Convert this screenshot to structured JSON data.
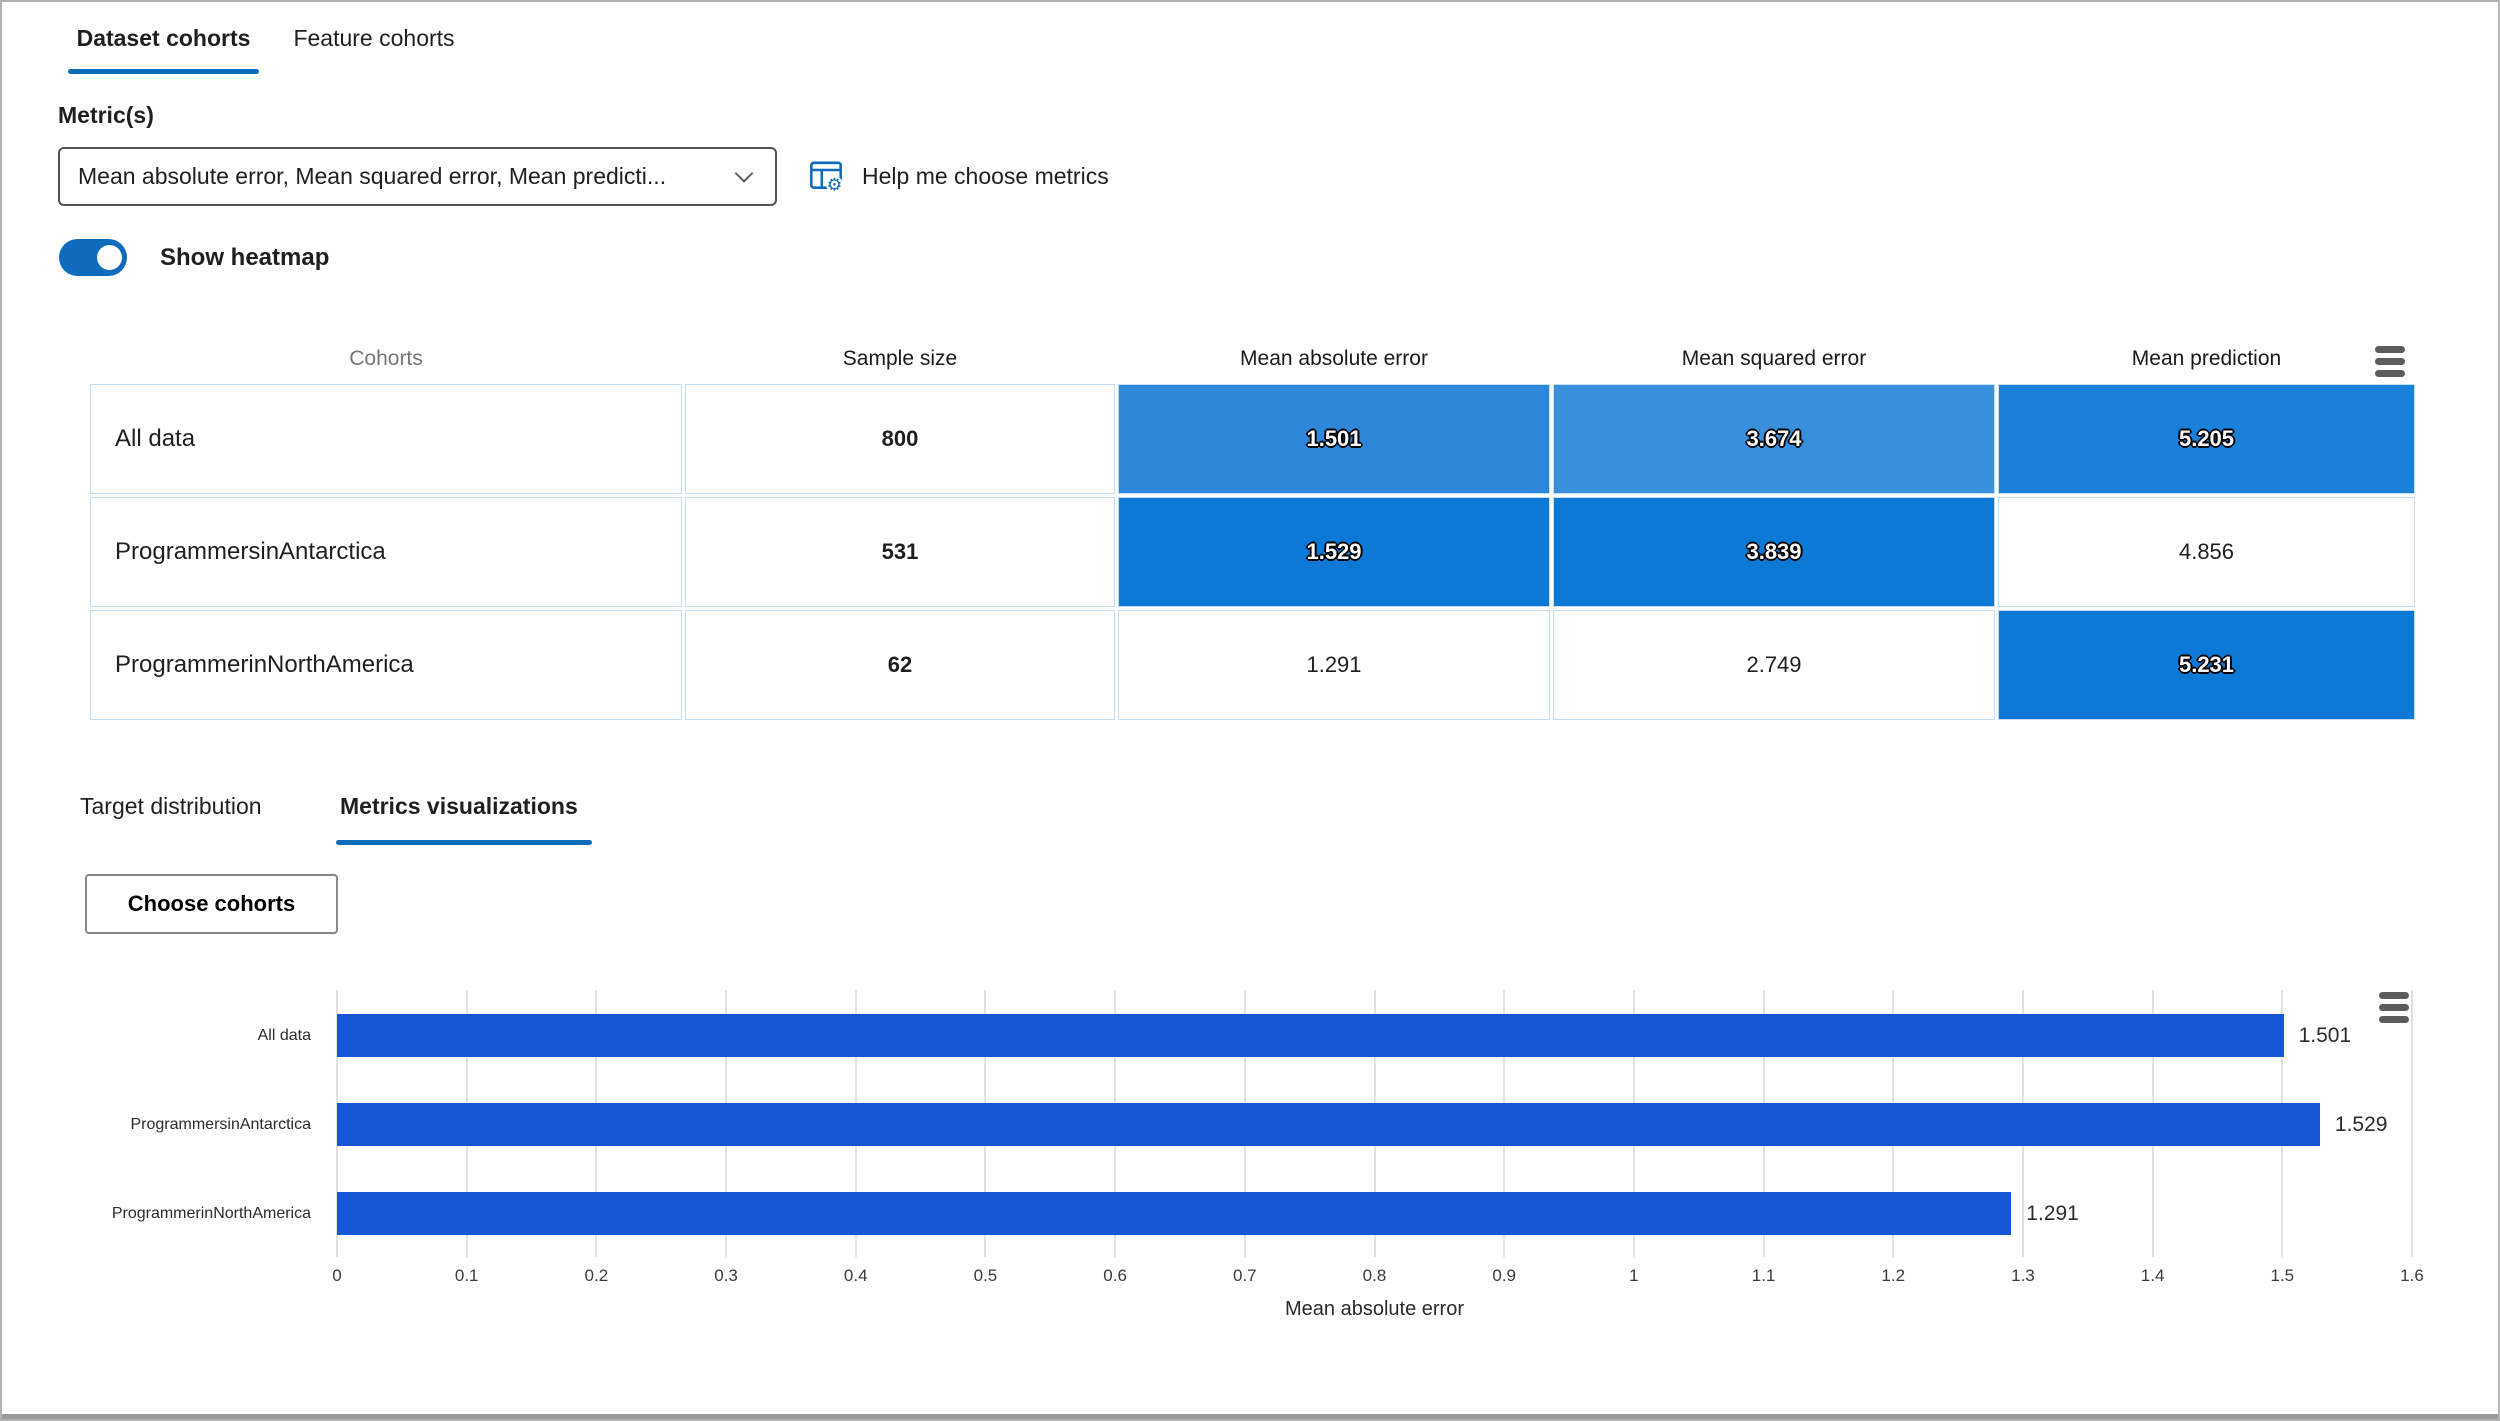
{
  "theme": {
    "accent": "#0f6cbd",
    "heatmap_full_blue": "#0d79d6",
    "bar_blue": "#1556d2"
  },
  "tabs": [
    {
      "label": "Dataset cohorts",
      "active": true
    },
    {
      "label": "Feature cohorts",
      "active": false
    }
  ],
  "metric_selector": {
    "label": "Metric(s)",
    "value": "Mean absolute error, Mean squared error, Mean predicti...",
    "help_label": "Help me choose metrics"
  },
  "heatmap_toggle": {
    "label": "Show heatmap",
    "state": "on"
  },
  "cohort_table": {
    "headers": [
      "Cohorts",
      "Sample size",
      "Mean absolute error",
      "Mean squared error",
      "Mean prediction"
    ],
    "rows": [
      {
        "cohort": "All data",
        "sample_size": "800",
        "values": [
          "1.501",
          "3.674",
          "5.205"
        ],
        "cell_colors": [
          "#2e87d9",
          "#3a90dd",
          "#1981d8"
        ]
      },
      {
        "cohort": "ProgrammersinAntarctica",
        "sample_size": "531",
        "values": [
          "1.529",
          "3.839",
          "4.856"
        ],
        "cell_colors": [
          "#0d79d6",
          "#0d79d6",
          "#ffffff"
        ]
      },
      {
        "cohort": "ProgrammerinNorthAmerica",
        "sample_size": "62",
        "values": [
          "1.291",
          "2.749",
          "5.231"
        ],
        "cell_colors": [
          "#ffffff",
          "#ffffff",
          "#0d79d6"
        ]
      }
    ]
  },
  "sub_tabs": [
    {
      "label": "Target distribution",
      "active": false
    },
    {
      "label": "Metrics visualizations",
      "active": true
    }
  ],
  "choose_cohorts_button": "Choose cohorts",
  "chart_data": {
    "type": "bar",
    "orientation": "horizontal",
    "categories": [
      "All data",
      "ProgrammersinAntarctica",
      "ProgrammerinNorthAmerica"
    ],
    "values": [
      1.501,
      1.529,
      1.291
    ],
    "value_labels": [
      "1.501",
      "1.529",
      "1.291"
    ],
    "xlabel": "Mean absolute error",
    "ylabel": "",
    "xlim": [
      0,
      1.6
    ],
    "xticks": [
      0,
      0.1,
      0.2,
      0.3,
      0.4,
      0.5,
      0.6,
      0.7,
      0.8,
      0.9,
      1,
      1.1,
      1.2,
      1.3,
      1.4,
      1.5,
      1.6
    ],
    "xtick_labels": [
      "0",
      "0.1",
      "0.2",
      "0.3",
      "0.4",
      "0.5",
      "0.6",
      "0.7",
      "0.8",
      "0.9",
      "1",
      "1.1",
      "1.2",
      "1.3",
      "1.4",
      "1.5",
      "1.6"
    ],
    "bar_color": "#1556d2",
    "grid": true,
    "legend": "none"
  }
}
